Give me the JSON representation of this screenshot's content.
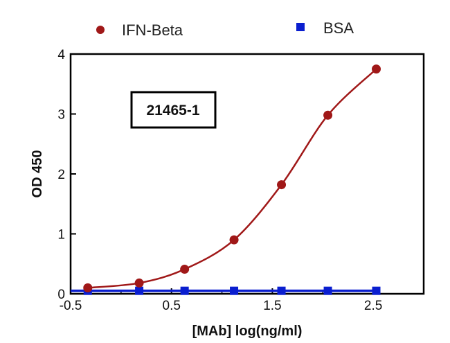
{
  "chart_data": {
    "type": "line",
    "title": "",
    "xlabel": "[MAb] log(ng/ml)",
    "ylabel": "OD 450",
    "xlim": [
      -0.5,
      3.0
    ],
    "ylim": [
      0,
      4
    ],
    "x_ticks": [
      -0.5,
      0.5,
      1.5,
      2.5
    ],
    "x_tick_labels": [
      "-0.5",
      "0.5",
      "1.5",
      "2.5"
    ],
    "y_ticks": [
      0,
      1,
      2,
      3,
      4
    ],
    "y_tick_labels": [
      "0",
      "1",
      "2",
      "3",
      "4"
    ],
    "grid": false,
    "legend_position": "top",
    "annotation": "21465-1",
    "series": [
      {
        "name": "IFN-Beta",
        "color": "#a01818",
        "marker": "circle",
        "x": [
          -0.33,
          0.18,
          0.63,
          1.12,
          1.59,
          2.05,
          2.53
        ],
        "y": [
          0.1,
          0.18,
          0.41,
          0.9,
          1.82,
          2.98,
          3.75
        ]
      },
      {
        "name": "BSA",
        "color": "#0a1ecf",
        "marker": "square",
        "x": [
          -0.33,
          0.18,
          0.63,
          1.12,
          1.59,
          2.05,
          2.53
        ],
        "y": [
          0.05,
          0.05,
          0.05,
          0.05,
          0.05,
          0.05,
          0.05
        ]
      }
    ]
  }
}
